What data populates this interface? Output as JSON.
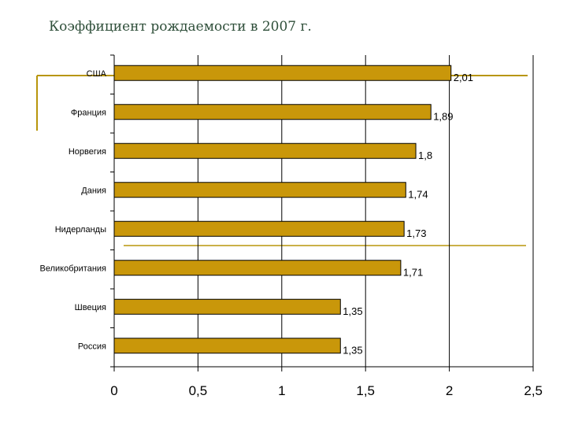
{
  "chart_data": {
    "type": "bar",
    "orientation": "horizontal",
    "title": "Коэффициент рождаемости в 2007 г.",
    "categories": [
      "США",
      "Франция",
      "Норвегия",
      "Дания",
      "Нидерланды",
      "Великобритания",
      "Швеция",
      "Россия"
    ],
    "values": [
      2.01,
      1.89,
      1.8,
      1.74,
      1.73,
      1.71,
      1.35,
      1.35
    ],
    "value_labels": [
      "2,01",
      "1,89",
      "1,8",
      "1,74",
      "1,73",
      "1,71",
      "1,35",
      "1,35"
    ],
    "xlim": [
      0,
      2.5
    ],
    "x_ticks": [
      0,
      0.5,
      1,
      1.5,
      2,
      2.5
    ],
    "x_tick_labels": [
      "0",
      "0,5",
      "1",
      "1,5",
      "2",
      "2,5"
    ],
    "xlabel": "",
    "ylabel": "",
    "grid": "vertical",
    "legend": "none",
    "colors": {
      "bar_fill": "#C9970A",
      "bar_stroke": "#000000",
      "accent_line": "#B8960C",
      "gridline": "#000000",
      "title_text": "#2F4F3A"
    }
  }
}
